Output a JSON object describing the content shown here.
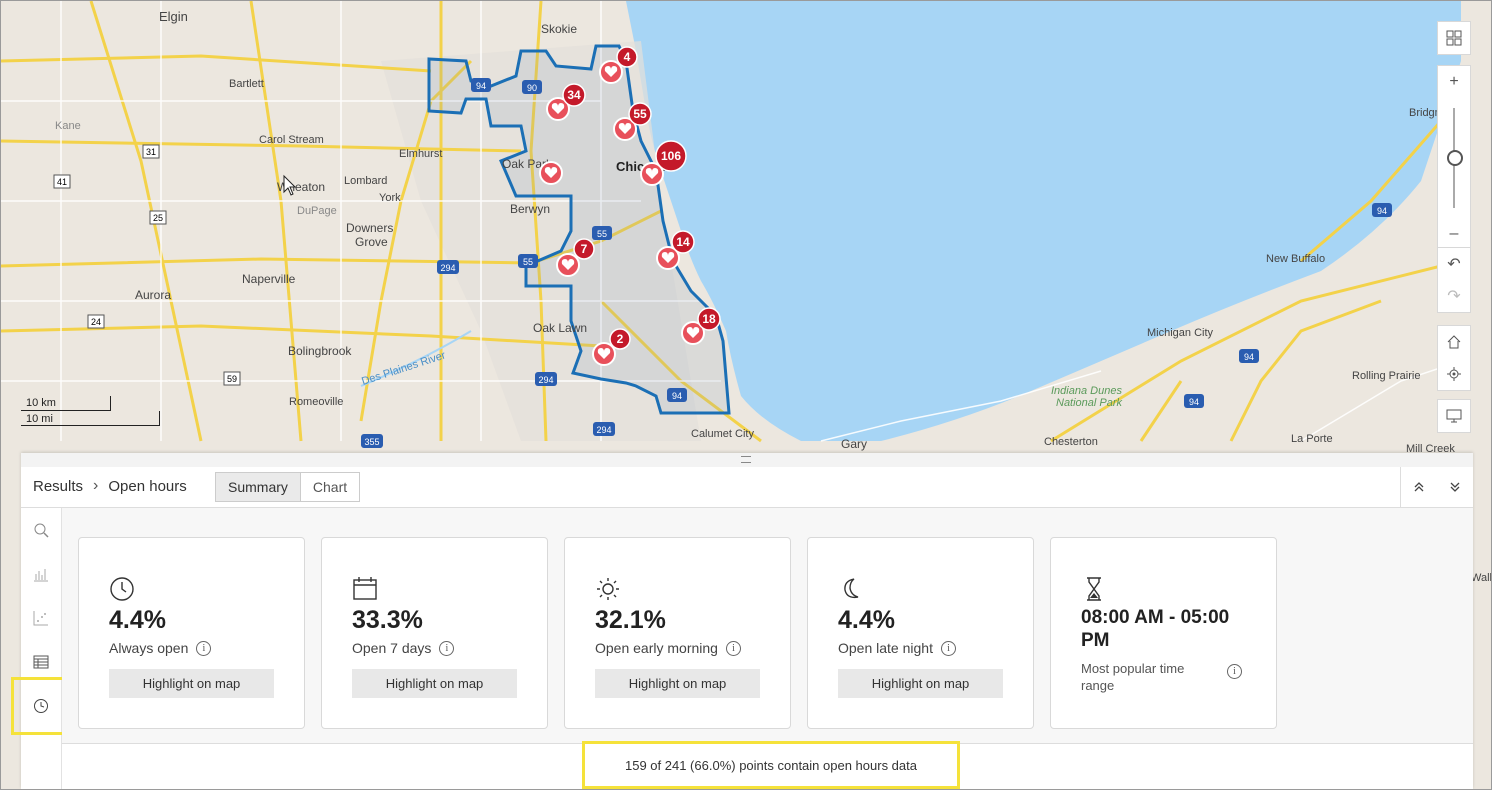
{
  "map": {
    "places": [
      "Elgin",
      "Skokie",
      "Bartlett",
      "Kane",
      "Carol Stream",
      "Elmhurst",
      "Lombard",
      "Wheaton",
      "York",
      "DuPage",
      "Oak Park",
      "Downers",
      "Grove",
      "Berwyn",
      "Chicago",
      "Naperville",
      "Aurora",
      "Bolingbrook",
      "Oak Lawn",
      "Des Plaines River",
      "Romeoville",
      "Calumet City",
      "Gary",
      "Chesterton",
      "La Porte",
      "Michigan City",
      "New Buffalo",
      "Rolling Prairie",
      "Bridgm",
      "Indiana Dunes National Park",
      "Mill Creek",
      "Walke"
    ],
    "route_shields": [
      "31",
      "41",
      "25",
      "24",
      "59",
      "355",
      "294",
      "294",
      "294",
      "55",
      "90",
      "94",
      "94",
      "94",
      "94",
      "94",
      "94"
    ],
    "clusters": [
      "4",
      "34",
      "55",
      "106",
      "14",
      "7",
      "18",
      "2"
    ],
    "scale": {
      "km": "10 km",
      "mi": "10 mi"
    }
  },
  "map_controls": [
    "grid-icon",
    "zoom-in-icon",
    "zoom-slider",
    "zoom-out-icon",
    "undo-icon",
    "redo-icon",
    "home-icon",
    "locate-icon",
    "screen-icon"
  ],
  "panel": {
    "breadcrumb_root": "Results",
    "breadcrumb_sep": "›",
    "breadcrumb_current": "Open hours",
    "tabs": [
      "Summary",
      "Chart"
    ],
    "active_tab": "Summary",
    "cards": [
      {
        "icon": "clock-icon",
        "value": "4.4%",
        "label": "Always open",
        "button": "Highlight on map"
      },
      {
        "icon": "calendar-icon",
        "value": "33.3%",
        "label": "Open 7 days",
        "button": "Highlight on map"
      },
      {
        "icon": "sun-icon",
        "value": "32.1%",
        "label": "Open early morning",
        "button": "Highlight on map"
      },
      {
        "icon": "moon-icon",
        "value": "4.4%",
        "label": "Open late night",
        "button": "Highlight on map"
      },
      {
        "icon": "hourglass-icon",
        "value": "08:00 AM - 05:00 PM",
        "label": "Most popular time range"
      }
    ],
    "footer": "159 of 241 (66.0%) points contain open hours data"
  }
}
